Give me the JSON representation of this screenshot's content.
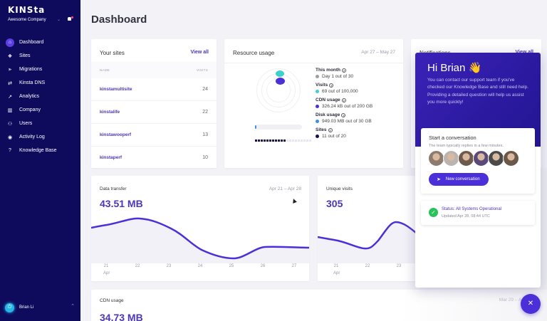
{
  "sidebar": {
    "logo": "KINSta",
    "company": "Awesome Company",
    "items": [
      {
        "label": "Dashboard",
        "icon": "home-icon",
        "glyph": "⌂",
        "active": true
      },
      {
        "label": "Sites",
        "icon": "sites-icon",
        "glyph": "❖"
      },
      {
        "label": "Migrations",
        "icon": "migrations-icon",
        "glyph": "⪢"
      },
      {
        "label": "Kinsta DNS",
        "icon": "dns-icon",
        "glyph": "⇄"
      },
      {
        "label": "Analytics",
        "icon": "analytics-icon",
        "glyph": "↗"
      },
      {
        "label": "Company",
        "icon": "company-icon",
        "glyph": "▥"
      },
      {
        "label": "Users",
        "icon": "users-icon",
        "glyph": "⚇"
      },
      {
        "label": "Activity Log",
        "icon": "eye-icon",
        "glyph": "◉"
      },
      {
        "label": "Knowledge Base",
        "icon": "help-icon",
        "glyph": "?"
      }
    ],
    "user": {
      "name": "Brian Li"
    }
  },
  "page": {
    "title": "Dashboard"
  },
  "your_sites": {
    "title": "Your sites",
    "view_all": "View all",
    "col_name": "NAME",
    "col_visits": "VISITS",
    "rows": [
      {
        "name": "kinstamultisite",
        "visits": "24"
      },
      {
        "name": "kinstalife",
        "visits": "22"
      },
      {
        "name": "kinstawooperf",
        "visits": "13"
      },
      {
        "name": "kinstaperf",
        "visits": "10"
      }
    ]
  },
  "resource_usage": {
    "title": "Resource usage",
    "date_range": "Apr 27 – May 27",
    "items": [
      {
        "title": "This month",
        "value": "Day 1 out of 30",
        "color": "#9e9e9e"
      },
      {
        "title": "Visits",
        "value": "69 out of 100,000",
        "color": "#3ecfcf"
      },
      {
        "title": "CDN usage",
        "value": "326.24 kB out of 200 GB",
        "color": "#4b2fd9"
      },
      {
        "title": "Disk usage",
        "value": "949.03 MB out of 30 GB",
        "color": "#3f8fe0"
      },
      {
        "title": "Sites",
        "value": "11 out of 20",
        "color": "#13104a"
      }
    ],
    "sites_used": 11,
    "sites_total": 20
  },
  "notifications": {
    "title": "Notifications",
    "view_all": "View all"
  },
  "data_transfer": {
    "title": "Data transfer",
    "date_range": "Apr 21 – Apr 28",
    "value": "43.51 MB",
    "x_labels": [
      "21",
      "22",
      "23",
      "24",
      "25",
      "26",
      "27"
    ],
    "x_sub": "Apr"
  },
  "unique_visits": {
    "title": "Unique visits",
    "value": "305",
    "x_labels": [
      "21",
      "22",
      "23"
    ],
    "x_sub": "Apr"
  },
  "cdn_usage": {
    "title": "CDN usage",
    "date_range": "Mar 29 – Apr",
    "value": "34.73 MB"
  },
  "chat": {
    "greeting": "Hi Brian 👋",
    "description": "You can contact our support team if you've checked our Knowledge Base and still need help. Providing a detailed question will help us assist you more quickly!",
    "conversation_title": "Start a conversation",
    "conversation_sub": "The team typically replies in a few minutes.",
    "new_conversation": "New conversation",
    "status_title": "Status: All Systems Operational",
    "status_sub": "Updated Apr 28, 08:44 UTC",
    "avatar_colors": [
      "#8d7b6e",
      "#b9b4b0",
      "#6e5a4a",
      "#5a4a7a",
      "#4a4a4a",
      "#6a5848"
    ]
  },
  "colors": {
    "accent": "#4b2fd9",
    "sidebar": "#0e0b5d",
    "link": "#4c36b9"
  }
}
